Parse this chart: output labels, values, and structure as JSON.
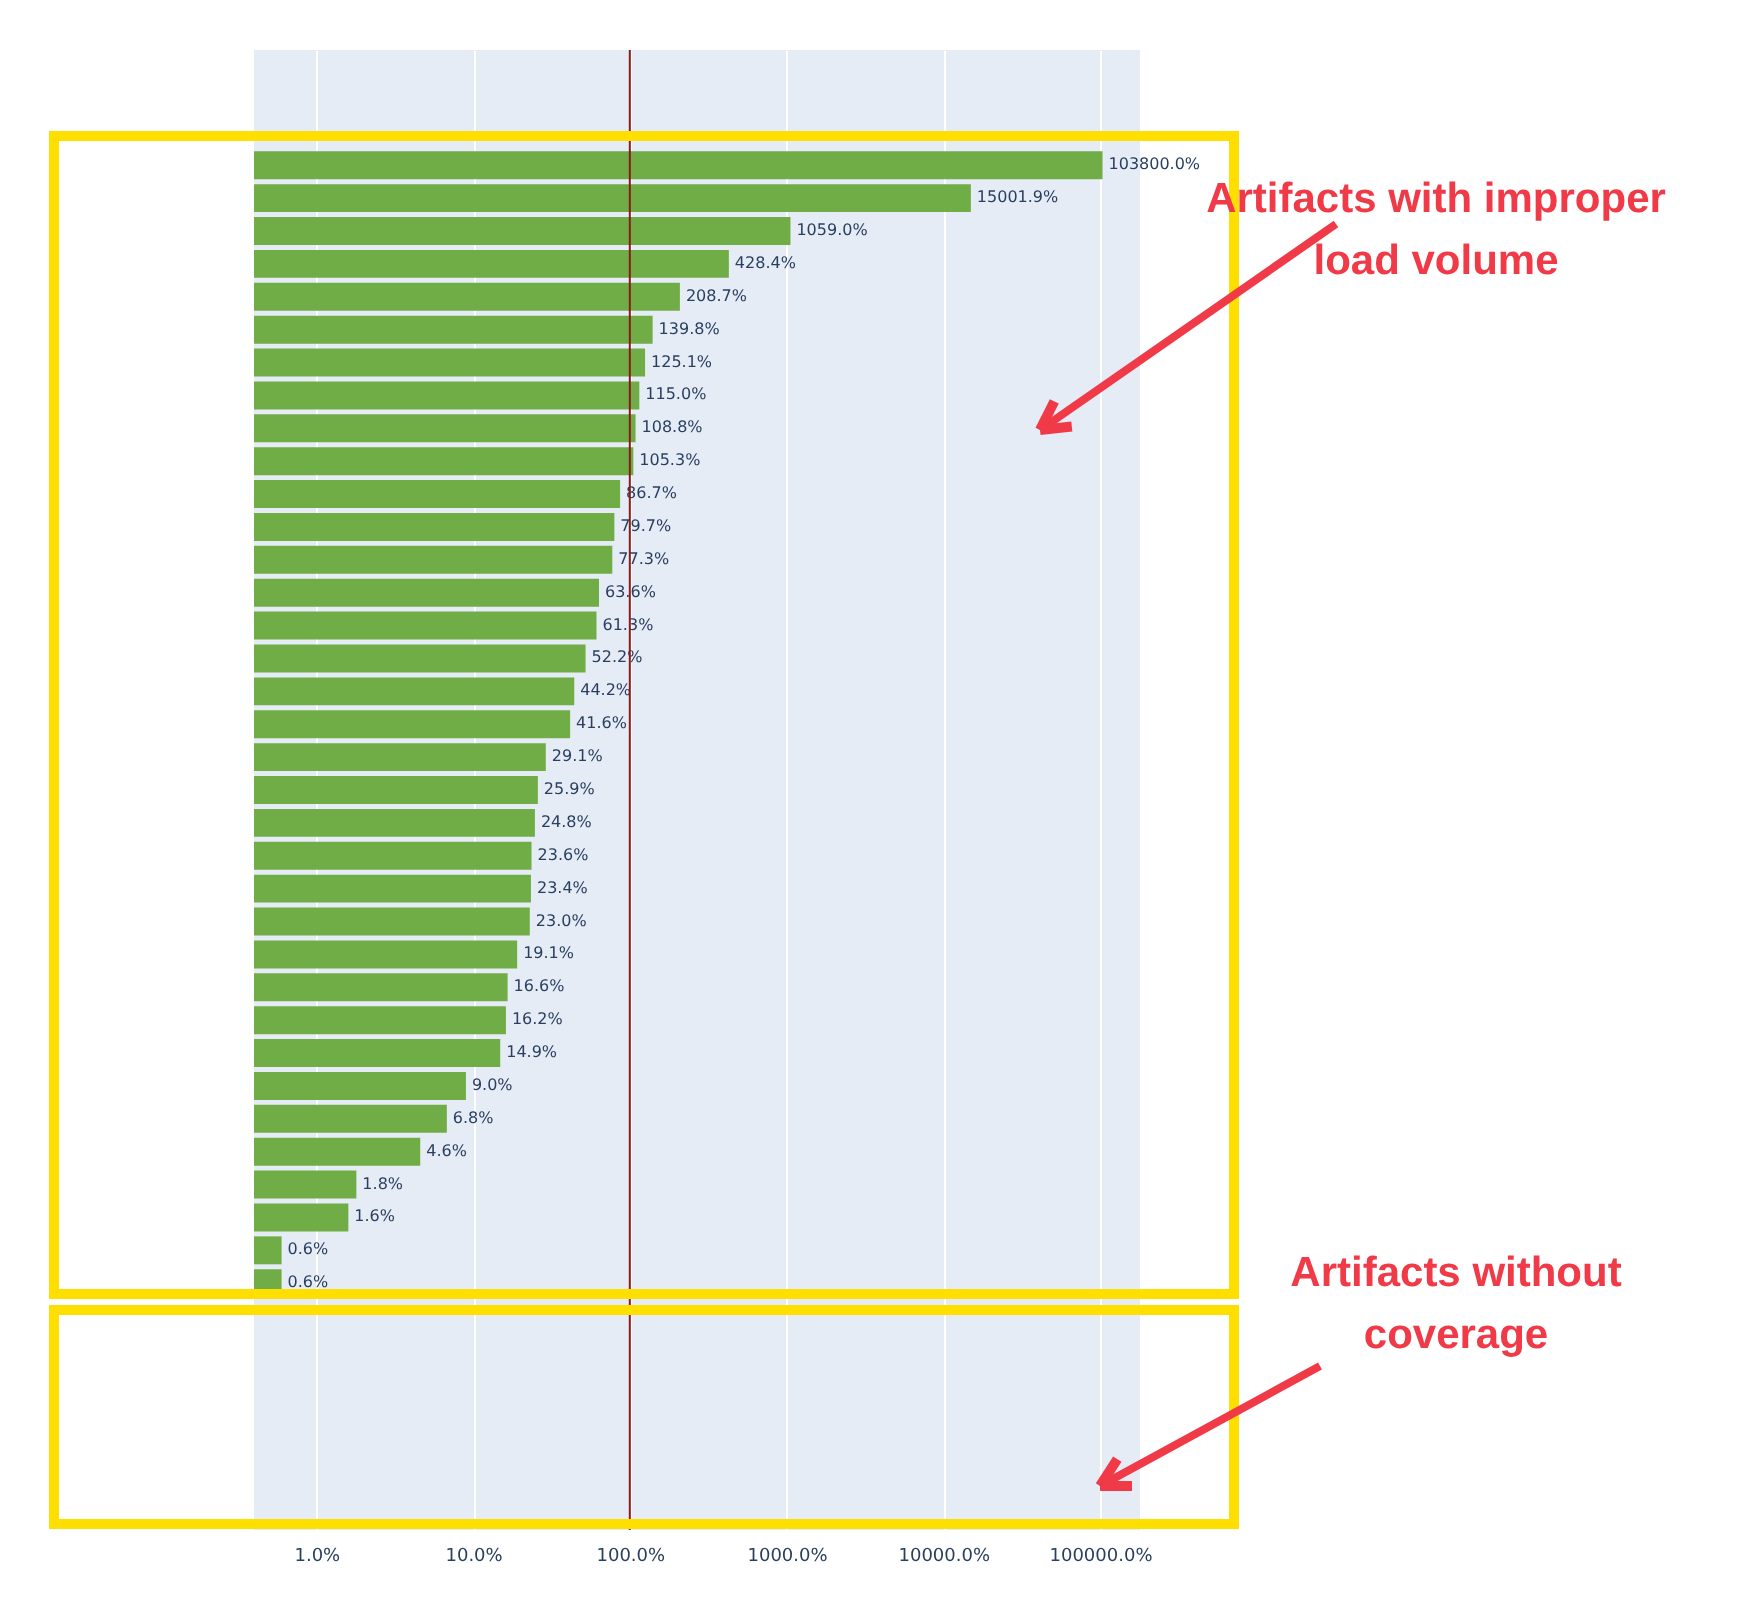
{
  "chart_data": {
    "type": "bar",
    "orientation": "horizontal",
    "log": "x",
    "categories": [
      null,
      null,
      null,
      null,
      null,
      null,
      null,
      null,
      null,
      null,
      null,
      null,
      null,
      null,
      null,
      null,
      null,
      null,
      null,
      null,
      null,
      null,
      null,
      null,
      null,
      null,
      null,
      null,
      null,
      null,
      null,
      null,
      null,
      null,
      null,
      null,
      null,
      null,
      null,
      null,
      null,
      null,
      null,
      null,
      null
    ],
    "values": [
      null,
      null,
      null,
      103800,
      15001.9,
      1059.0,
      428.4,
      208.7,
      139.8,
      125.1,
      115.0,
      108.8,
      105.3,
      86.7,
      79.7,
      77.3,
      63.6,
      61.3,
      52.2,
      44.2,
      41.6,
      29.1,
      25.9,
      24.8,
      23.6,
      23.4,
      23.0,
      19.1,
      16.6,
      16.2,
      14.9,
      9.0,
      6.8,
      4.6,
      1.8,
      1.6,
      0.6,
      0.6,
      null,
      null,
      null,
      null,
      null,
      null,
      null
    ],
    "value_labels": [
      null,
      null,
      null,
      "103800.0%",
      "15001.9%",
      "1059.0%",
      "428.4%",
      "208.7%",
      "139.8%",
      "125.1%",
      "115.0%",
      "108.8%",
      "105.3%",
      "86.7%",
      "79.7%",
      "77.3%",
      "63.6%",
      "61.3%",
      "52.2%",
      "44.2%",
      "41.6%",
      "29.1%",
      "25.9%",
      "24.8%",
      "23.6%",
      "23.4%",
      "23.0%",
      "19.1%",
      "16.6%",
      "16.2%",
      "14.9%",
      "9.0%",
      "6.8%",
      "4.6%",
      "1.8%",
      "1.6%",
      "0.6%",
      "0.6%",
      null,
      null,
      null,
      null,
      null,
      null,
      null
    ],
    "color": "#70ad47",
    "xlim": [
      0.4,
      180000
    ],
    "xticks": [
      {
        "value": 1,
        "label": "1.0%"
      },
      {
        "value": 10,
        "label": "10.0%"
      },
      {
        "value": 100,
        "label": "100.0%"
      },
      {
        "value": 1000,
        "label": "1000.0%"
      },
      {
        "value": 10000,
        "label": "10000.0%"
      },
      {
        "value": 100000,
        "label": "100000.0%"
      }
    ],
    "grid": "x",
    "tick_labels": "x",
    "ref_lines": [
      {
        "axis": "x",
        "value": 100,
        "color": "#8b1a1a"
      }
    ],
    "annotations": [
      "Artifacts with improper load volume",
      "Artifacts without coverage"
    ]
  }
}
